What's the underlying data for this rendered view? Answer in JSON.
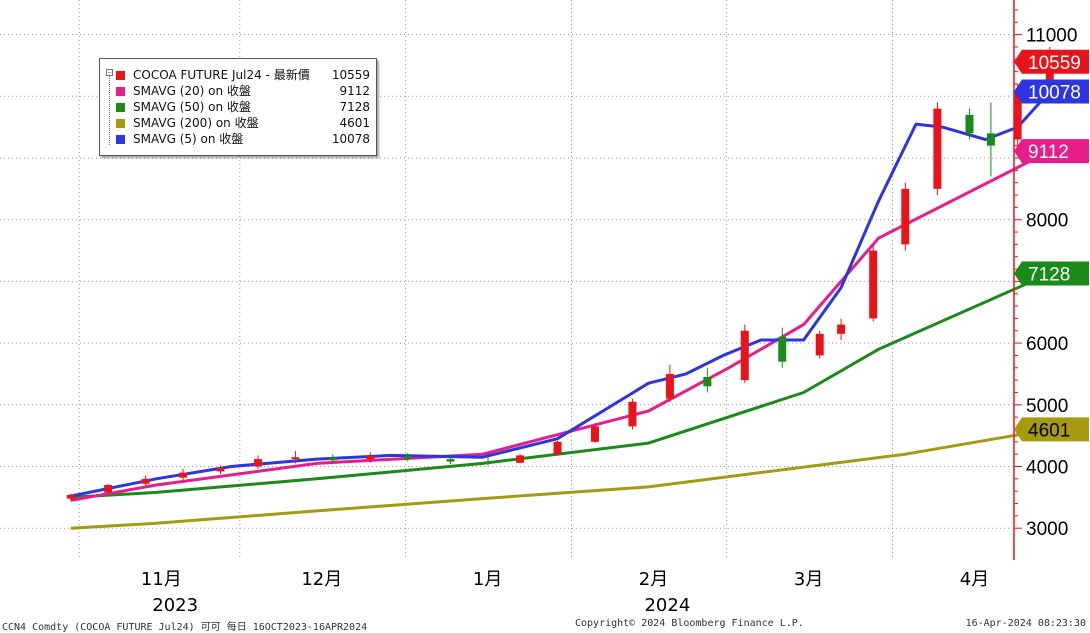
{
  "chart_data": {
    "type": "line",
    "subtype": "candlestick-with-moving-averages",
    "grid": true,
    "y_axis_side": "right",
    "ylim": [
      2500,
      11500
    ],
    "y_ticks": [
      3000,
      4000,
      5000,
      6000,
      8000,
      11000
    ],
    "y_tick_labels": [
      "3000",
      "4000",
      "5000",
      "6000",
      "8000",
      "11000"
    ],
    "month_labels": [
      {
        "label": "11月",
        "date": "2023-11-01"
      },
      {
        "label": "12月",
        "date": "2023-12-01"
      },
      {
        "label": "1月",
        "date": "2024-01-01"
      },
      {
        "label": "2月",
        "date": "2024-02-01"
      },
      {
        "label": "3月",
        "date": "2024-03-01"
      },
      {
        "label": "4月",
        "date": "2024-04-01"
      }
    ],
    "year_labels": [
      {
        "label": "2023",
        "date": "2023-11-15"
      },
      {
        "label": "2024",
        "date": "2024-02-15"
      }
    ],
    "x_range": [
      "2023-10-16",
      "2024-04-23"
    ],
    "legend": [
      {
        "name": "COCOA FUTURE Jul24 - 最新價",
        "value": "10559",
        "color": "#e8141b"
      },
      {
        "name": "SMAVG (20)  on 收盤",
        "value": "9112",
        "color": "#e61e8c"
      },
      {
        "name": "SMAVG (50)  on 收盤",
        "value": "7128",
        "color": "#1a8a1a"
      },
      {
        "name": "SMAVG (200)  on 收盤",
        "value": "4601",
        "color": "#a69a10"
      },
      {
        "name": "SMAVG (5)  on 收盤",
        "value": "10078",
        "color": "#2b35e0"
      }
    ],
    "value_tags": [
      {
        "text": "10559",
        "value": 10559,
        "bg": "#e8141b",
        "fg": "#ffffff"
      },
      {
        "text": "10078",
        "value": 10078,
        "bg": "#2b35e0",
        "fg": "#ffffff"
      },
      {
        "text": "9112",
        "value": 9112,
        "bg": "#e61e8c",
        "fg": "#ffffff"
      },
      {
        "text": "7128",
        "value": 7128,
        "bg": "#1a8a1a",
        "fg": "#ffffff"
      },
      {
        "text": "4601",
        "value": 4601,
        "bg": "#a69a10",
        "fg": "#000000"
      }
    ],
    "series": [
      {
        "name": "SMAVG (200)  on 收盤",
        "color": "#a69a10",
        "points": [
          [
            "2023-10-16",
            3000
          ],
          [
            "2023-11-01",
            3080
          ],
          [
            "2023-12-01",
            3280
          ],
          [
            "2024-01-01",
            3480
          ],
          [
            "2024-02-01",
            3670
          ],
          [
            "2024-03-01",
            3990
          ],
          [
            "2024-03-20",
            4200
          ],
          [
            "2024-04-16",
            4601
          ]
        ]
      },
      {
        "name": "SMAVG (50)  on 收盤",
        "color": "#1a8a1a",
        "points": [
          [
            "2023-10-16",
            3500
          ],
          [
            "2023-11-01",
            3580
          ],
          [
            "2023-12-01",
            3800
          ],
          [
            "2024-01-01",
            4050
          ],
          [
            "2024-02-01",
            4380
          ],
          [
            "2024-03-01",
            5200
          ],
          [
            "2024-03-15",
            5900
          ],
          [
            "2024-04-16",
            7128
          ]
        ]
      },
      {
        "name": "SMAVG (20)  on 收盤",
        "color": "#e61e8c",
        "points": [
          [
            "2023-10-16",
            3450
          ],
          [
            "2023-11-01",
            3700
          ],
          [
            "2023-12-01",
            4050
          ],
          [
            "2024-01-01",
            4200
          ],
          [
            "2024-02-01",
            4900
          ],
          [
            "2024-02-16",
            5600
          ],
          [
            "2024-03-01",
            6300
          ],
          [
            "2024-03-15",
            7700
          ],
          [
            "2024-04-16",
            9112
          ]
        ]
      },
      {
        "name": "SMAVG (5)  on 收盤",
        "color": "#2b35e0",
        "points": [
          [
            "2023-10-16",
            3520
          ],
          [
            "2023-11-01",
            3800
          ],
          [
            "2023-11-15",
            4000
          ],
          [
            "2023-12-01",
            4120
          ],
          [
            "2023-12-15",
            4180
          ],
          [
            "2024-01-01",
            4150
          ],
          [
            "2024-01-15",
            4450
          ],
          [
            "2024-02-01",
            5350
          ],
          [
            "2024-02-08",
            5500
          ],
          [
            "2024-02-15",
            5800
          ],
          [
            "2024-02-22",
            6050
          ],
          [
            "2024-03-01",
            6050
          ],
          [
            "2024-03-08",
            6900
          ],
          [
            "2024-03-15",
            8300
          ],
          [
            "2024-03-22",
            9550
          ],
          [
            "2024-03-27",
            9500
          ],
          [
            "2024-04-04",
            9300
          ],
          [
            "2024-04-10",
            9500
          ],
          [
            "2024-04-16",
            10078
          ]
        ]
      },
      {
        "name": "COCOA FUTURE Jul24 - 最新價",
        "color": "#e8141b",
        "type": "candlestick",
        "ohlc": [
          [
            "2023-10-16",
            3480,
            3560,
            3450,
            3540
          ],
          [
            "2023-10-23",
            3580,
            3720,
            3550,
            3700
          ],
          [
            "2023-10-30",
            3720,
            3850,
            3680,
            3800
          ],
          [
            "2023-11-06",
            3820,
            3960,
            3780,
            3900
          ],
          [
            "2023-11-13",
            3920,
            4020,
            3880,
            3980
          ],
          [
            "2023-11-20",
            4000,
            4180,
            3960,
            4120
          ],
          [
            "2023-11-27",
            4120,
            4250,
            4050,
            4150
          ],
          [
            "2023-12-04",
            4150,
            4200,
            4050,
            4100
          ],
          [
            "2023-12-11",
            4120,
            4230,
            4060,
            4170
          ],
          [
            "2023-12-18",
            4170,
            4220,
            4080,
            4120
          ],
          [
            "2023-12-26",
            4120,
            4200,
            4040,
            4080
          ],
          [
            "2024-01-02",
            4080,
            4150,
            4020,
            4060
          ],
          [
            "2024-01-08",
            4060,
            4200,
            4050,
            4180
          ],
          [
            "2024-01-15",
            4200,
            4420,
            4180,
            4400
          ],
          [
            "2024-01-22",
            4400,
            4700,
            4380,
            4650
          ],
          [
            "2024-01-29",
            4650,
            5100,
            4600,
            5050
          ],
          [
            "2024-02-05",
            5100,
            5650,
            5050,
            5500
          ],
          [
            "2024-02-12",
            5450,
            5600,
            5200,
            5300
          ],
          [
            "2024-02-19",
            5400,
            6300,
            5350,
            6200
          ],
          [
            "2024-02-26",
            6100,
            6250,
            5600,
            5700
          ],
          [
            "2024-03-04",
            5800,
            6200,
            5750,
            6150
          ],
          [
            "2024-03-08",
            6150,
            6400,
            6050,
            6300
          ],
          [
            "2024-03-14",
            6400,
            7600,
            6350,
            7500
          ],
          [
            "2024-03-20",
            7600,
            8600,
            7500,
            8500
          ],
          [
            "2024-03-26",
            8500,
            9900,
            8400,
            9800
          ],
          [
            "2024-04-01",
            9700,
            9800,
            9300,
            9400
          ],
          [
            "2024-04-05",
            9400,
            9900,
            8700,
            9200
          ],
          [
            "2024-04-10",
            9300,
            10200,
            9200,
            10100
          ],
          [
            "2024-04-16",
            10100,
            10800,
            10050,
            10559
          ]
        ]
      }
    ]
  },
  "footer": {
    "left": "CCN4 Comdty (COCOA FUTURE    Jul24) 可可  每日 16OCT2023-16APR2024",
    "center": "Copyright© 2024 Bloomberg Finance L.P.",
    "right": "16-Apr-2024 08:23:30"
  }
}
